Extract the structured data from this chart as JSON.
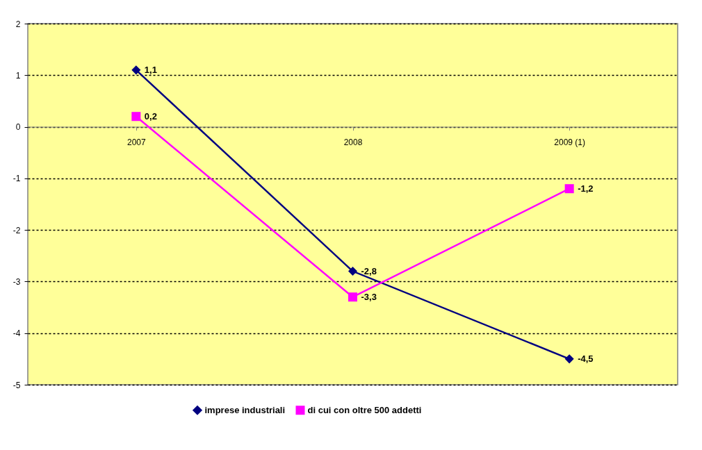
{
  "chart_data": {
    "type": "line",
    "categories": [
      "2007",
      "2008",
      "2009 (1)"
    ],
    "series": [
      {
        "name": "imprese industriali",
        "color": "#000080",
        "values": [
          1.1,
          -2.8,
          -4.5
        ],
        "value_labels": [
          "1,1",
          "-2,8",
          "-4,5"
        ],
        "marker": "diamond"
      },
      {
        "name": "di cui con oltre 500 addetti",
        "color": "#ff00ff",
        "values": [
          0.2,
          -3.3,
          -1.2
        ],
        "value_labels": [
          "0,2",
          "-3,3",
          "-1,2"
        ],
        "marker": "square"
      }
    ],
    "ylim": [
      -5,
      2
    ],
    "yticks": [
      -5,
      -4,
      -3,
      -2,
      -1,
      0,
      1,
      2
    ],
    "grid": "y",
    "legend": "bottom",
    "line_style": "solid"
  }
}
